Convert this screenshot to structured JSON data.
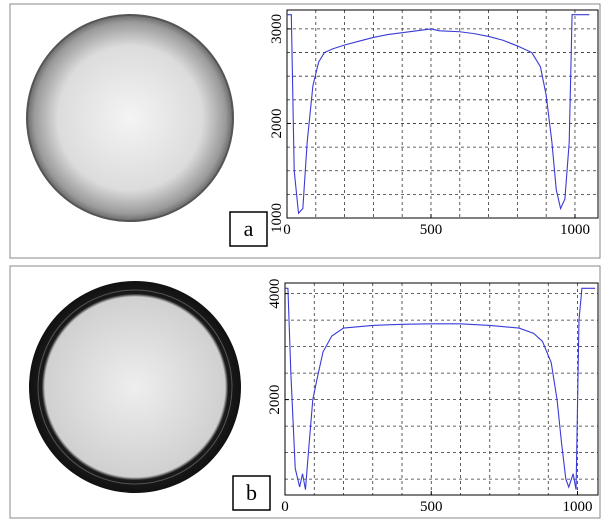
{
  "chart_data": [
    {
      "type": "line",
      "label": "a",
      "x": [
        0,
        15,
        25,
        40,
        55,
        70,
        90,
        110,
        130,
        160,
        200,
        250,
        300,
        350,
        400,
        450,
        500,
        530,
        600,
        650,
        700,
        750,
        800,
        850,
        880,
        900,
        920,
        935,
        950,
        965,
        980,
        990,
        1050
      ],
      "series": [
        {
          "color": "#3a3ad8",
          "values": [
            3150,
            3150,
            1500,
            1050,
            1100,
            1800,
            2400,
            2650,
            2750,
            2790,
            2830,
            2870,
            2910,
            2940,
            2960,
            2980,
            3000,
            2980,
            2970,
            2950,
            2920,
            2880,
            2820,
            2750,
            2600,
            2300,
            1800,
            1300,
            1100,
            1200,
            1800,
            3150,
            3150
          ]
        }
      ],
      "xlim": [
        0,
        1080
      ],
      "ylim": [
        1000,
        3200
      ],
      "xticks": [
        0,
        500,
        1000
      ],
      "yticks": [
        1000,
        2000,
        3000
      ],
      "xgrid": [
        100,
        200,
        300,
        400,
        500,
        600,
        700,
        800,
        900,
        1000
      ],
      "ygrid": [
        1250,
        1500,
        1750,
        2000,
        2250,
        2500,
        2750,
        3000
      ]
    },
    {
      "type": "line",
      "label": "b",
      "x": [
        0,
        10,
        20,
        35,
        50,
        60,
        70,
        80,
        95,
        110,
        130,
        160,
        200,
        300,
        400,
        500,
        600,
        700,
        800,
        850,
        880,
        910,
        930,
        945,
        960,
        970,
        985,
        995,
        1005,
        1015,
        1060
      ],
      "series": [
        {
          "color": "#3a3ad8",
          "values": [
            4100,
            4100,
            2500,
            700,
            350,
            600,
            300,
            1000,
            2000,
            2400,
            2900,
            3200,
            3350,
            3400,
            3420,
            3430,
            3430,
            3400,
            3350,
            3250,
            3100,
            2700,
            2000,
            1200,
            500,
            350,
            600,
            300,
            3500,
            4100,
            4100
          ]
        }
      ],
      "xlim": [
        0,
        1070
      ],
      "ylim": [
        200,
        4200
      ],
      "xticks": [
        0,
        500,
        1000
      ],
      "yticks": [
        2000,
        4000
      ],
      "xgrid": [
        100,
        200,
        300,
        400,
        500,
        600,
        700,
        800,
        900,
        1000
      ],
      "ygrid": [
        500,
        1000,
        1500,
        2000,
        2500,
        3000,
        3500,
        4000
      ]
    }
  ]
}
